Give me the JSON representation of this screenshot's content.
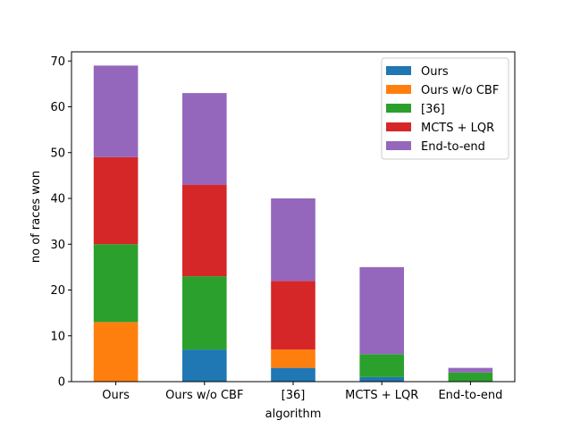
{
  "chart_data": {
    "type": "bar",
    "stacked": true,
    "xlabel": "algorithm",
    "ylabel": "no of races won",
    "categories": [
      "Ours",
      "Ours w/o CBF",
      "[36]",
      "MCTS + LQR",
      "End-to-end"
    ],
    "ylim": [
      0,
      72
    ],
    "yticks": [
      0,
      10,
      20,
      30,
      40,
      50,
      60,
      70
    ],
    "grid": false,
    "legend_position": "top-right",
    "series": [
      {
        "name": "Ours",
        "color": "#1f77b4",
        "values": [
          0,
          7,
          3,
          1,
          0
        ]
      },
      {
        "name": "Ours w/o CBF",
        "color": "#ff7f0e",
        "values": [
          13,
          0,
          4,
          0,
          0
        ]
      },
      {
        "name": "[36]",
        "color": "#2ca02c",
        "values": [
          17,
          16,
          0,
          5,
          2
        ]
      },
      {
        "name": "MCTS + LQR",
        "color": "#d62728",
        "values": [
          19,
          20,
          15,
          0,
          0
        ]
      },
      {
        "name": "End-to-end",
        "color": "#9467bd",
        "values": [
          20,
          20,
          18,
          19,
          1
        ]
      }
    ]
  }
}
